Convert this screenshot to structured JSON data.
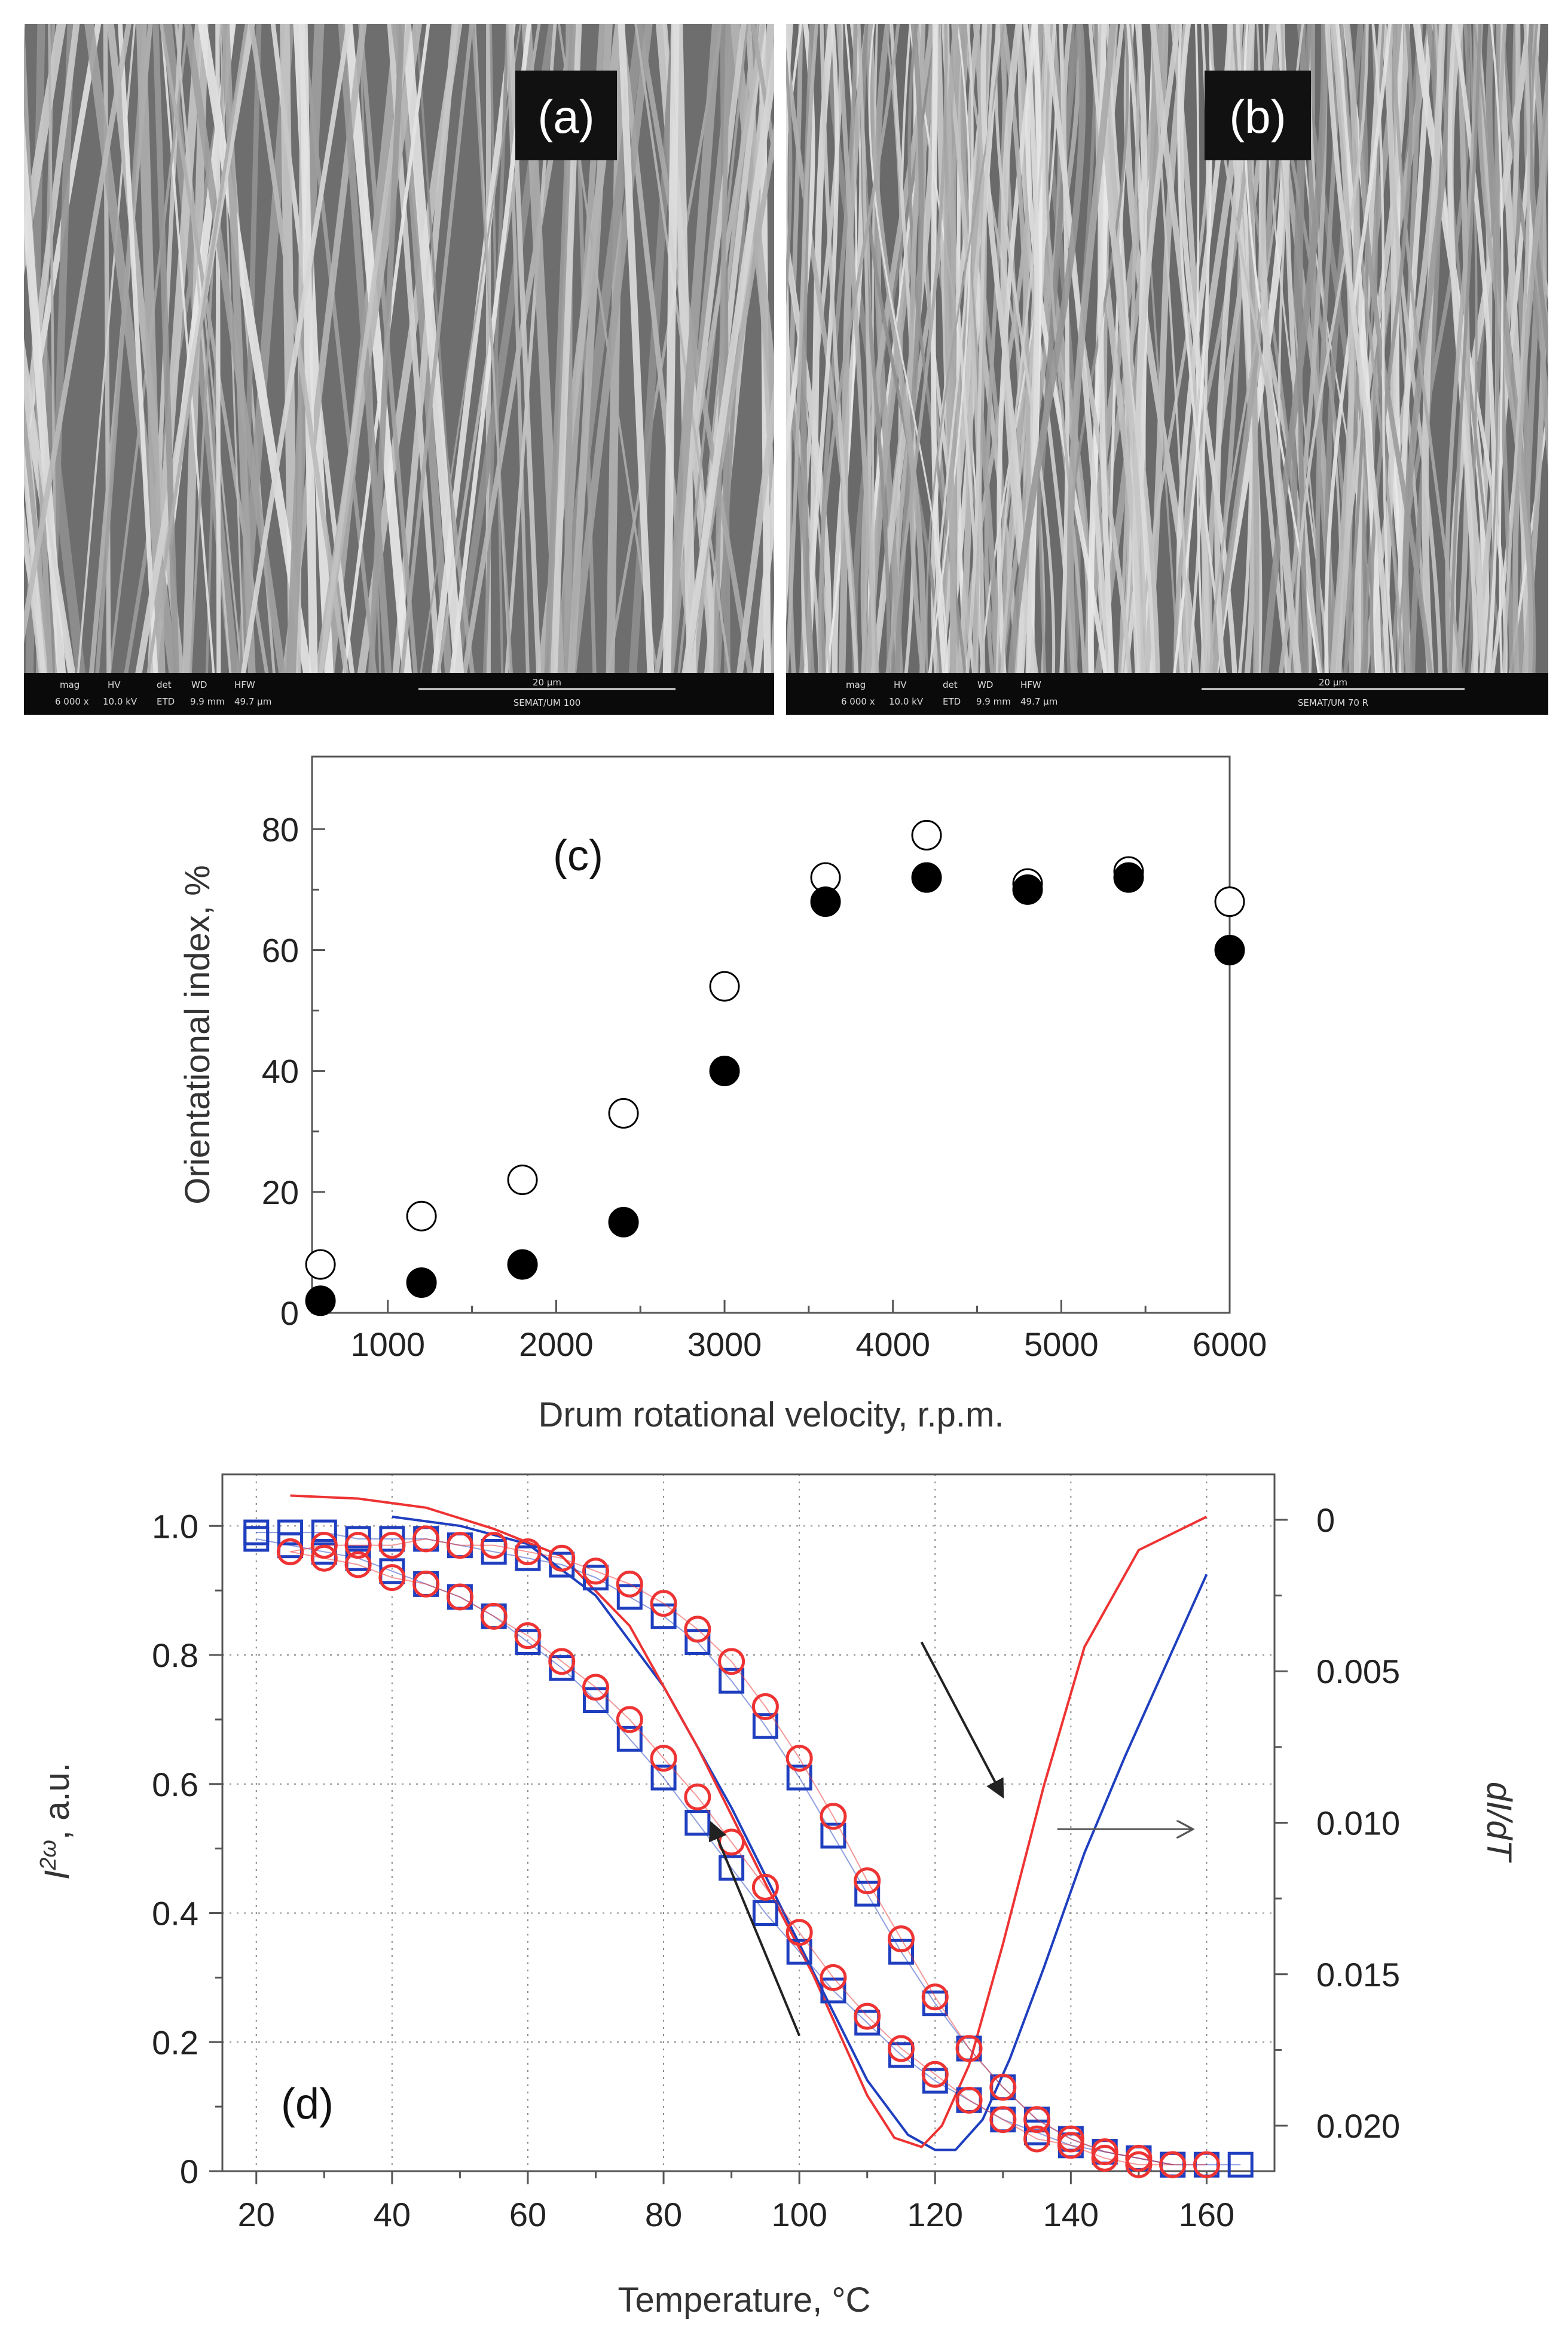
{
  "sem_panels": [
    {
      "tag": "(a)",
      "info": {
        "labels": [
          "mag",
          "HV",
          "det",
          "WD",
          "HFW"
        ],
        "values": [
          "6 000 x",
          "10.0 kV",
          "ETD",
          "9.9 mm",
          "49.7 µm"
        ],
        "scale": "20 µm",
        "sample": "SEMAT/UM 100"
      }
    },
    {
      "tag": "(b)",
      "info": {
        "labels": [
          "mag",
          "HV",
          "det",
          "WD",
          "HFW"
        ],
        "values": [
          "6 000 x",
          "10.0 kV",
          "ETD",
          "9.9 mm",
          "49.7 µm"
        ],
        "scale": "20 µm",
        "sample": "SEMAT/UM 70 R"
      }
    }
  ],
  "chart_data": [
    {
      "type": "scatter",
      "panel_label": "(c)",
      "title": "",
      "xlabel": "Drum rotational velocity, r.p.m.",
      "ylabel": "Orientational index, %",
      "xlim": [
        550,
        6000
      ],
      "ylim": [
        0,
        92
      ],
      "x_ticks": [
        1000,
        2000,
        3000,
        4000,
        5000,
        6000
      ],
      "x_tick_labels": [
        "1000",
        "2000",
        "3000",
        "4000",
        "5000",
        "6000"
      ],
      "y_ticks": [
        0,
        20,
        40,
        60,
        80
      ],
      "y_tick_labels": [
        "0",
        "20",
        "40",
        "60",
        "80"
      ],
      "grid": false,
      "series": [
        {
          "name": "open circles",
          "marker": "open-circle",
          "color": "#000000",
          "x": [
            600,
            1200,
            1800,
            2400,
            3000,
            3600,
            4200,
            4800,
            5400,
            6000
          ],
          "y": [
            8,
            16,
            22,
            33,
            54,
            72,
            79,
            71,
            73,
            68
          ]
        },
        {
          "name": "filled circles",
          "marker": "filled-circle",
          "color": "#000000",
          "x": [
            600,
            1200,
            1800,
            2400,
            3000,
            3600,
            4200,
            4800,
            5400,
            6000
          ],
          "y": [
            2,
            5,
            8,
            15,
            40,
            68,
            72,
            70,
            72,
            60
          ]
        }
      ]
    },
    {
      "type": "line",
      "panel_label": "(d)",
      "title": "",
      "xlabel": "Temperature, °C",
      "ylabel": "I2ω, a.u.",
      "ylabel_main": "I",
      "ylabel_sup": "2ω",
      "ylabel_rest": ", a.u.",
      "y2label": "dI/dT",
      "xlim": [
        15,
        170
      ],
      "ylim": [
        0,
        1.08
      ],
      "y2lim": [
        -0.0015,
        0.0215
      ],
      "x_ticks": [
        20,
        40,
        60,
        80,
        100,
        120,
        140,
        160
      ],
      "x_tick_labels": [
        "20",
        "40",
        "60",
        "80",
        "100",
        "120",
        "140",
        "160"
      ],
      "y_ticks": [
        0,
        0.2,
        0.4,
        0.6,
        0.8,
        1.0
      ],
      "y_tick_labels": [
        "0",
        "0.2",
        "0.4",
        "0.6",
        "0.8",
        "1.0"
      ],
      "y2_ticks": [
        0,
        0.005,
        0.01,
        0.015,
        0.02
      ],
      "y2_tick_labels": [
        "0",
        "0.005",
        "0.010",
        "0.015",
        "0.020"
      ],
      "grid": true,
      "series": [
        {
          "name": "blue squares heating",
          "marker": "open-square",
          "color": "#1f3fbf",
          "axis": "left",
          "x": [
            20,
            25,
            30,
            35,
            40,
            45,
            50,
            55,
            60,
            65,
            70,
            75,
            80,
            85,
            90,
            95,
            100,
            105,
            110,
            115,
            120,
            125,
            130,
            135,
            140,
            145,
            150,
            155,
            160,
            165
          ],
          "y": [
            0.99,
            0.99,
            0.99,
            0.98,
            0.98,
            0.98,
            0.97,
            0.96,
            0.95,
            0.94,
            0.92,
            0.89,
            0.86,
            0.82,
            0.76,
            0.69,
            0.61,
            0.52,
            0.43,
            0.34,
            0.26,
            0.19,
            0.13,
            0.08,
            0.05,
            0.03,
            0.02,
            0.01,
            0.01,
            0.01
          ]
        },
        {
          "name": "blue squares cooling",
          "marker": "open-square",
          "color": "#1f3fbf",
          "axis": "left",
          "x": [
            20,
            25,
            30,
            35,
            40,
            45,
            50,
            55,
            60,
            65,
            70,
            75,
            80,
            85,
            90,
            95,
            100,
            105,
            110,
            115,
            120,
            125,
            130,
            135,
            140,
            145,
            150,
            155
          ],
          "y": [
            0.98,
            0.97,
            0.96,
            0.95,
            0.93,
            0.91,
            0.89,
            0.86,
            0.82,
            0.78,
            0.73,
            0.67,
            0.61,
            0.54,
            0.47,
            0.4,
            0.34,
            0.28,
            0.23,
            0.18,
            0.14,
            0.11,
            0.08,
            0.06,
            0.04,
            0.03,
            0.02,
            0.01
          ]
        },
        {
          "name": "red circles heating",
          "marker": "open-circle",
          "color": "#ee3333",
          "axis": "left",
          "x": [
            25,
            30,
            35,
            40,
            45,
            50,
            55,
            60,
            65,
            70,
            75,
            80,
            85,
            90,
            95,
            100,
            105,
            110,
            115,
            120,
            125,
            130,
            135,
            140,
            145,
            150,
            155,
            160
          ],
          "y": [
            0.96,
            0.97,
            0.97,
            0.97,
            0.98,
            0.97,
            0.97,
            0.96,
            0.95,
            0.93,
            0.91,
            0.88,
            0.84,
            0.79,
            0.72,
            0.64,
            0.55,
            0.45,
            0.36,
            0.27,
            0.19,
            0.13,
            0.08,
            0.05,
            0.03,
            0.02,
            0.01,
            0.01
          ]
        },
        {
          "name": "red circles cooling",
          "marker": "open-circle",
          "color": "#ee3333",
          "axis": "left",
          "x": [
            25,
            30,
            35,
            40,
            45,
            50,
            55,
            60,
            65,
            70,
            75,
            80,
            85,
            90,
            95,
            100,
            105,
            110,
            115,
            120,
            125,
            130,
            135,
            140,
            145,
            150,
            155
          ],
          "y": [
            0.96,
            0.95,
            0.94,
            0.92,
            0.91,
            0.89,
            0.86,
            0.83,
            0.79,
            0.75,
            0.7,
            0.64,
            0.58,
            0.51,
            0.44,
            0.37,
            0.3,
            0.24,
            0.19,
            0.15,
            0.11,
            0.08,
            0.05,
            0.04,
            0.02,
            0.01,
            0.01
          ]
        },
        {
          "name": "blue dI/dT",
          "marker": "none",
          "color": "#1f3fbf",
          "axis": "right",
          "x": [
            40,
            50,
            60,
            70,
            80,
            90,
            100,
            110,
            116,
            120,
            123,
            127,
            131,
            136,
            142,
            148,
            154,
            160
          ],
          "y": [
            -0.0001,
            0.0002,
            0.0008,
            0.0025,
            0.0055,
            0.0095,
            0.014,
            0.0185,
            0.0203,
            0.0208,
            0.0208,
            0.0198,
            0.0178,
            0.0148,
            0.011,
            0.0078,
            0.0048,
            0.0018
          ]
        },
        {
          "name": "red dI/dT",
          "marker": "none",
          "color": "#ee3333",
          "axis": "right",
          "x": [
            25,
            35,
            45,
            55,
            65,
            75,
            85,
            95,
            102,
            106,
            110,
            114,
            118,
            121,
            125,
            130,
            136,
            142,
            150,
            160
          ],
          "y": [
            -0.0008,
            -0.0007,
            -0.0004,
            0.0003,
            0.0012,
            0.0035,
            0.0075,
            0.012,
            0.015,
            0.017,
            0.019,
            0.0204,
            0.0207,
            0.02,
            0.018,
            0.014,
            0.0088,
            0.0042,
            0.001,
            -0.0001
          ]
        }
      ],
      "annotations": [
        {
          "type": "arrow",
          "meaning": "heating direction",
          "from": [
            118,
            0.82
          ],
          "to": [
            130,
            0.58
          ]
        },
        {
          "type": "arrow",
          "meaning": "cooling direction",
          "from": [
            100,
            0.21
          ],
          "to": [
            87,
            0.54
          ]
        },
        {
          "type": "arrow",
          "meaning": "points to right axis",
          "from": [
            138,
            0.53
          ],
          "to": [
            158,
            0.53
          ]
        }
      ]
    }
  ]
}
